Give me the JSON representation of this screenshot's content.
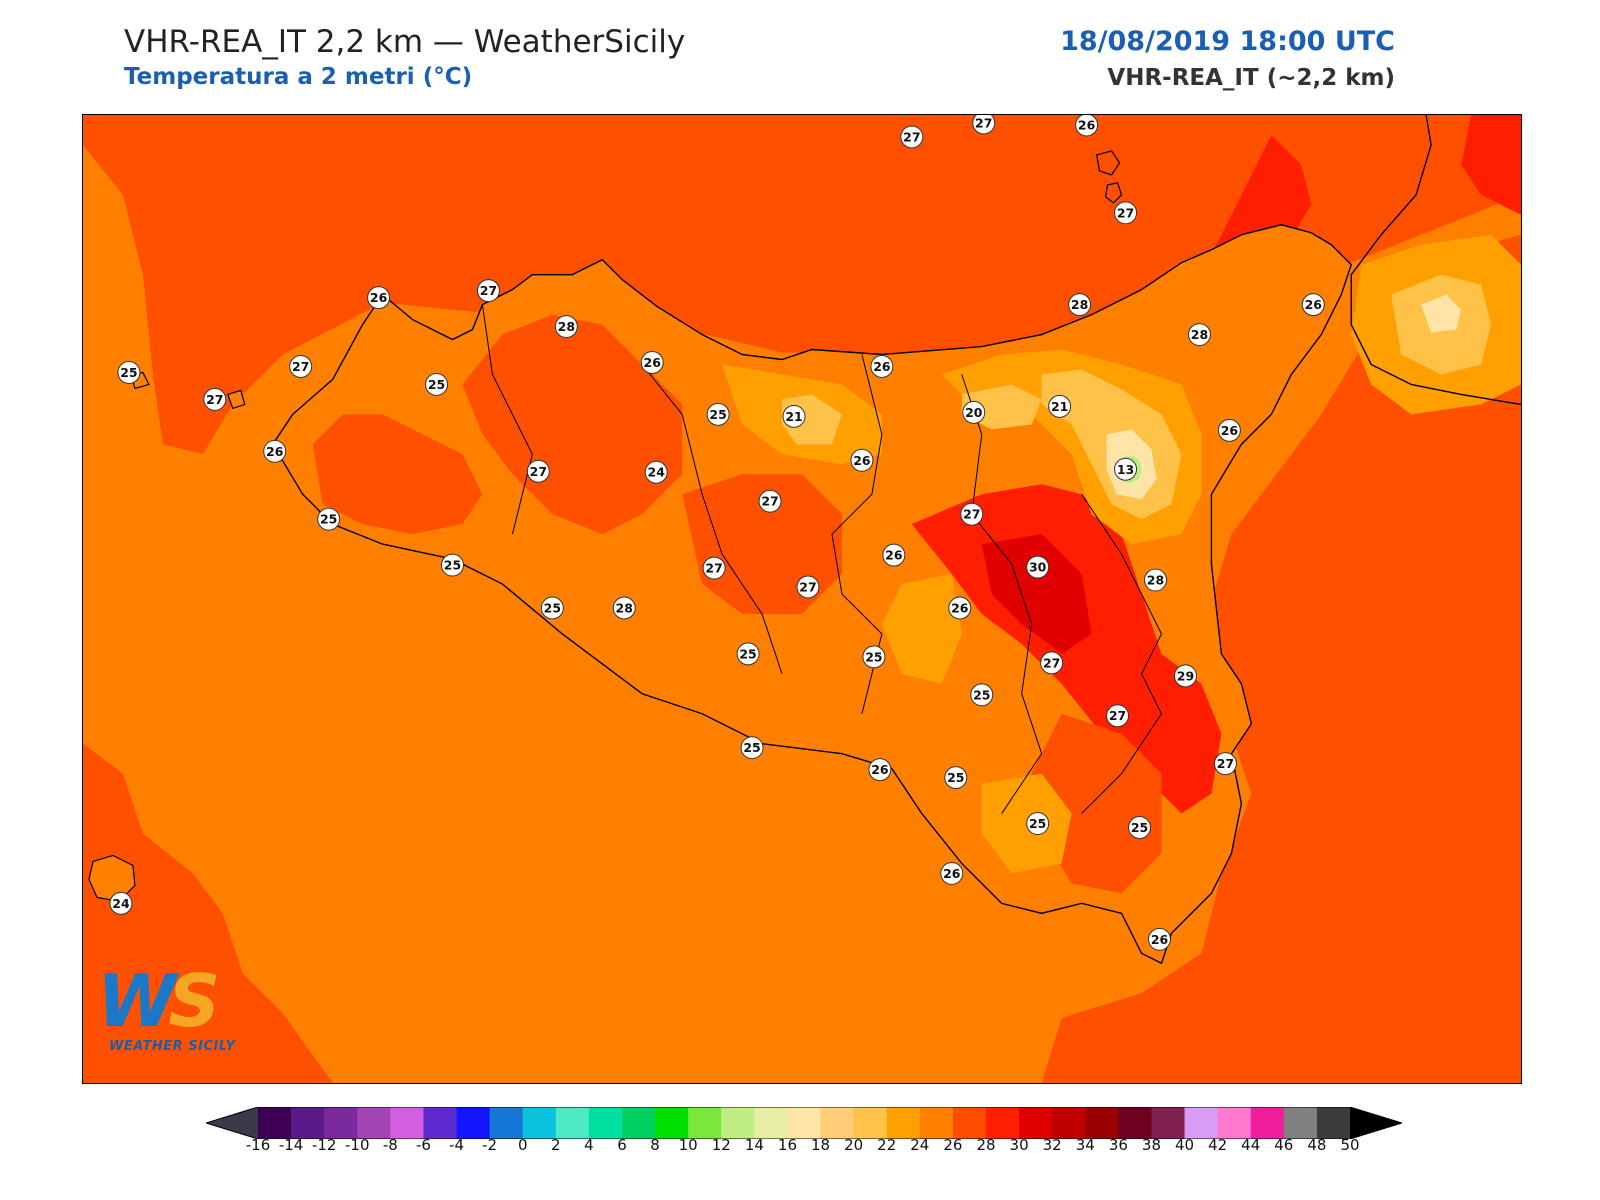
{
  "header": {
    "title": "VHR-REA_IT 2,2 km — WeatherSicily",
    "subtitle": "Temperatura a 2 metri (°C)",
    "datetime": "18/08/2019 18:00 UTC",
    "model": "VHR-REA_IT (~2,2 km)"
  },
  "logo": {
    "mark_w": "W",
    "mark_s": "S",
    "text": "WEATHER SICILY"
  },
  "colorbar": {
    "labels": [
      "-16",
      "-14",
      "-12",
      "-10",
      "-8",
      "-6",
      "-4",
      "-2",
      "0",
      "2",
      "4",
      "6",
      "8",
      "10",
      "12",
      "14",
      "16",
      "18",
      "20",
      "22",
      "24",
      "26",
      "28",
      "30",
      "32",
      "34",
      "36",
      "38",
      "40",
      "42",
      "44",
      "46",
      "48",
      "50"
    ],
    "colors": [
      "#3d0055",
      "#5a1a88",
      "#7b2a9e",
      "#a345b5",
      "#d35fe0",
      "#5d2bd0",
      "#1414ff",
      "#1477d6",
      "#0bc3dd",
      "#4de9c4",
      "#00e0a0",
      "#00d060",
      "#00e000",
      "#7ae83a",
      "#c0ee84",
      "#e6eea4",
      "#ffe4a8",
      "#ffcc78",
      "#ffc248",
      "#ffa000",
      "#ff7f00",
      "#ff4d00",
      "#ff1e00",
      "#e00000",
      "#c00000",
      "#9a0000",
      "#700020",
      "#802050",
      "#d89cf5",
      "#ff78d0",
      "#f01e9a",
      "#808080",
      "#3c3c3c"
    ],
    "under_color": "#3a3a4a",
    "over_color": "#000000"
  },
  "map": {
    "field_colors": {
      "sea_main": "#ff7f00",
      "sea_warm": "#ff5000",
      "hot": "#ff1e00",
      "very_hot": "#e00000",
      "mild": "#ffa000",
      "cool": "#ffc248",
      "cold": "#ffe4a8",
      "coldest": "#c0ee84"
    },
    "stations": [
      {
        "v": "27"
      },
      {
        "v": "27"
      },
      {
        "v": "26"
      },
      {
        "v": "27"
      },
      {
        "v": "26"
      },
      {
        "v": "27"
      },
      {
        "v": "28"
      },
      {
        "v": "28"
      },
      {
        "v": "28"
      },
      {
        "v": "26"
      },
      {
        "v": "25"
      },
      {
        "v": "27"
      },
      {
        "v": "27"
      },
      {
        "v": "25"
      },
      {
        "v": "26"
      },
      {
        "v": "26"
      },
      {
        "v": "25"
      },
      {
        "v": "21"
      },
      {
        "v": "20"
      },
      {
        "v": "21"
      },
      {
        "v": "26"
      },
      {
        "v": "26"
      },
      {
        "v": "27"
      },
      {
        "v": "24"
      },
      {
        "v": "26"
      },
      {
        "v": "13"
      },
      {
        "v": "27"
      },
      {
        "v": "27"
      },
      {
        "v": "26"
      },
      {
        "v": "30"
      },
      {
        "v": "28"
      },
      {
        "v": "26"
      },
      {
        "v": "27"
      },
      {
        "v": "27"
      },
      {
        "v": "28"
      },
      {
        "v": "25"
      },
      {
        "v": "25"
      },
      {
        "v": "25"
      },
      {
        "v": "25"
      },
      {
        "v": "27"
      },
      {
        "v": "29"
      },
      {
        "v": "25"
      },
      {
        "v": "27"
      },
      {
        "v": "25"
      },
      {
        "v": "26"
      },
      {
        "v": "25"
      },
      {
        "v": "25"
      },
      {
        "v": "25"
      },
      {
        "v": "26"
      },
      {
        "v": "27"
      },
      {
        "v": "25"
      },
      {
        "v": "26"
      },
      {
        "v": "24"
      }
    ]
  }
}
